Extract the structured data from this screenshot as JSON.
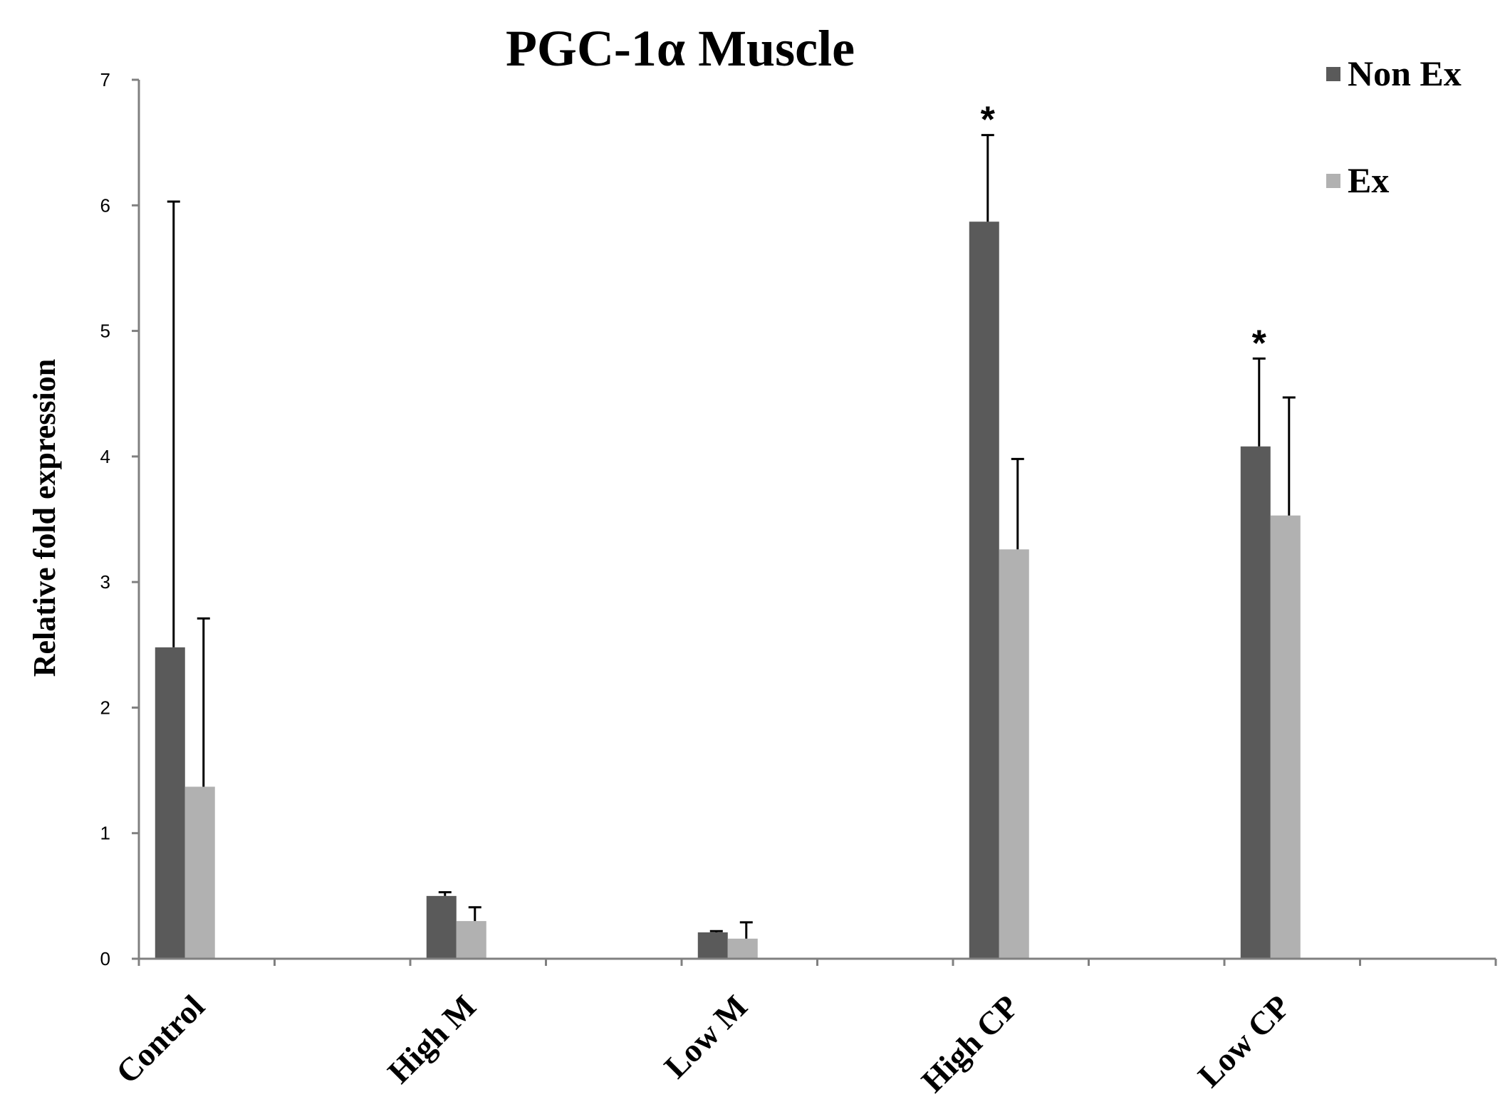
{
  "chart_data": {
    "type": "bar",
    "title": "PGC-1α Muscle",
    "ylabel": "Relative fold expression",
    "xlabel": "",
    "ylim": [
      0,
      7
    ],
    "yticks": [
      "0",
      "1",
      "2",
      "3",
      "4",
      "5",
      "6",
      "7"
    ],
    "categories": [
      "Control",
      "High M",
      "Low M",
      "High CP",
      "Low CP"
    ],
    "series": [
      {
        "name": "Non Ex",
        "color": "#5a5a5a",
        "values": [
          2.48,
          0.5,
          0.21,
          5.87,
          4.08
        ],
        "error_upper": [
          6.03,
          0.53,
          0.22,
          6.56,
          4.78
        ],
        "significance": [
          "",
          "",
          "",
          "*",
          "*"
        ]
      },
      {
        "name": "Ex",
        "color": "#b1b1b1",
        "values": [
          1.37,
          0.3,
          0.16,
          3.26,
          3.53
        ],
        "error_upper": [
          2.71,
          0.41,
          0.29,
          3.98,
          4.47
        ],
        "significance": [
          "",
          "",
          "",
          "",
          ""
        ]
      }
    ],
    "legend_position": "top-right",
    "grid": false,
    "axis_color": "#808080",
    "errorbar_color": "#000000"
  }
}
